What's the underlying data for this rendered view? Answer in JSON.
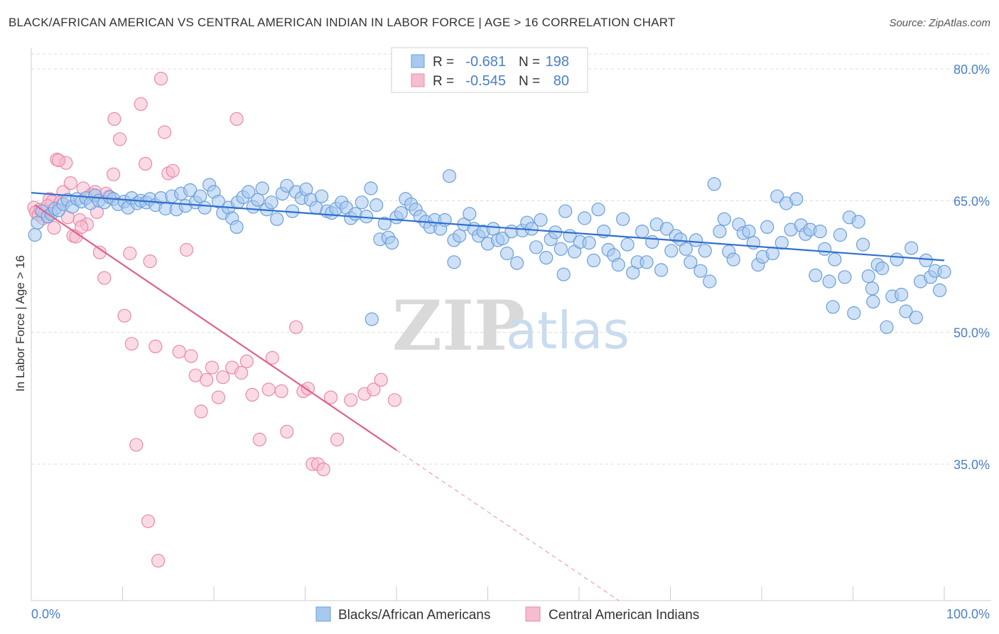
{
  "title": "BLACK/AFRICAN AMERICAN VS CENTRAL AMERICAN INDIAN IN LABOR FORCE | AGE > 16 CORRELATION CHART",
  "source": "Source: ZipAtlas.com",
  "watermark": {
    "zip": "ZIP",
    "atlas": "atlas"
  },
  "legend_top": [
    {
      "r_label": "R =",
      "r_value": "-0.681",
      "n_label": "N =",
      "n_value": "198"
    },
    {
      "r_label": "R =",
      "r_value": "-0.545",
      "n_label": "N =",
      "n_value": "80"
    }
  ],
  "colors": {
    "blue_fill": "#a8c8f0",
    "blue_stroke": "#6a9fd8",
    "blue_line": "#2f6fd0",
    "pink_fill": "#f6bcd0",
    "pink_stroke": "#e98aaa",
    "pink_line": "#e0608e",
    "tick_text": "#4a7fc9",
    "grid": "#dcdcdc"
  },
  "chart_data": {
    "type": "scatter",
    "title": "BLACK/AFRICAN AMERICAN VS CENTRAL AMERICAN INDIAN IN LABOR FORCE | AGE > 16 CORRELATION CHART",
    "xlabel": "",
    "ylabel": "In Labor Force | Age > 16",
    "xlim": [
      0,
      100
    ],
    "ylim": [
      20,
      82
    ],
    "x_tick_labels": [
      "0.0%",
      "100.0%"
    ],
    "y_ticks": [
      35,
      50,
      65,
      80
    ],
    "y_tick_labels": [
      "35.0%",
      "50.0%",
      "65.0%",
      "80.0%"
    ],
    "grid": true,
    "legend_placement": "bottom-center",
    "series": [
      {
        "name": "Blacks/African Americans",
        "color": "#a8c8f0",
        "trend": {
          "x": [
            0,
            100
          ],
          "y": [
            65.9,
            58.2
          ]
        },
        "points": [
          [
            0.4,
            61.1
          ],
          [
            0.7,
            62.5
          ],
          [
            1.2,
            63.8
          ],
          [
            1.8,
            63.2
          ],
          [
            2.2,
            63.5
          ],
          [
            2.6,
            64.1
          ],
          [
            3.0,
            63.9
          ],
          [
            3.5,
            64.6
          ],
          [
            4.0,
            65.1
          ],
          [
            4.5,
            64.3
          ],
          [
            5.0,
            65.2
          ],
          [
            5.5,
            64.9
          ],
          [
            6.0,
            65.3
          ],
          [
            6.5,
            64.7
          ],
          [
            7.0,
            65.6
          ],
          [
            7.4,
            65.0
          ],
          [
            8.0,
            64.8
          ],
          [
            8.6,
            65.4
          ],
          [
            9.0,
            65.2
          ],
          [
            9.5,
            64.6
          ],
          [
            10.2,
            64.9
          ],
          [
            10.6,
            64.2
          ],
          [
            11.0,
            65.3
          ],
          [
            11.6,
            64.7
          ],
          [
            12.0,
            65.0
          ],
          [
            12.6,
            64.8
          ],
          [
            13.0,
            65.2
          ],
          [
            13.6,
            64.5
          ],
          [
            14.2,
            65.3
          ],
          [
            14.7,
            64.1
          ],
          [
            15.4,
            65.5
          ],
          [
            15.9,
            64.0
          ],
          [
            16.4,
            65.8
          ],
          [
            16.9,
            64.4
          ],
          [
            17.4,
            66.2
          ],
          [
            18.0,
            64.8
          ],
          [
            18.5,
            65.5
          ],
          [
            19.0,
            64.2
          ],
          [
            19.5,
            66.8
          ],
          [
            20.0,
            66.0
          ],
          [
            20.5,
            64.9
          ],
          [
            21.0,
            63.6
          ],
          [
            21.6,
            64.2
          ],
          [
            22.0,
            63.0
          ],
          [
            22.6,
            64.8
          ],
          [
            23.2,
            65.4
          ],
          [
            23.8,
            66.0
          ],
          [
            24.3,
            64.3
          ],
          [
            24.8,
            65.1
          ],
          [
            25.3,
            66.4
          ],
          [
            25.8,
            64.0
          ],
          [
            26.3,
            64.8
          ],
          [
            26.9,
            62.9
          ],
          [
            27.5,
            65.8
          ],
          [
            28.0,
            66.7
          ],
          [
            28.6,
            63.8
          ],
          [
            29.0,
            66.0
          ],
          [
            29.6,
            65.3
          ],
          [
            30.1,
            66.3
          ],
          [
            30.6,
            65.1
          ],
          [
            31.2,
            64.2
          ],
          [
            31.8,
            65.5
          ],
          [
            32.4,
            63.8
          ],
          [
            32.9,
            63.6
          ],
          [
            33.4,
            64.1
          ],
          [
            34.0,
            64.8
          ],
          [
            34.5,
            64.2
          ],
          [
            35.0,
            63.0
          ],
          [
            35.5,
            63.5
          ],
          [
            36.2,
            64.8
          ],
          [
            36.7,
            63.2
          ],
          [
            37.2,
            66.4
          ],
          [
            37.8,
            64.5
          ],
          [
            38.2,
            60.6
          ],
          [
            38.7,
            62.4
          ],
          [
            39.1,
            60.8
          ],
          [
            39.5,
            60.2
          ],
          [
            40.0,
            63.1
          ],
          [
            40.5,
            63.6
          ],
          [
            41.0,
            65.2
          ],
          [
            41.6,
            64.6
          ],
          [
            42.1,
            64.0
          ],
          [
            42.6,
            63.2
          ],
          [
            43.2,
            62.6
          ],
          [
            43.7,
            62.0
          ],
          [
            44.2,
            62.8
          ],
          [
            44.8,
            61.8
          ],
          [
            45.3,
            62.8
          ],
          [
            45.8,
            67.8
          ],
          [
            46.3,
            60.5
          ],
          [
            46.9,
            61.0
          ],
          [
            47.4,
            62.3
          ],
          [
            48.0,
            63.5
          ],
          [
            48.5,
            61.8
          ],
          [
            49.0,
            61.0
          ],
          [
            49.5,
            61.5
          ],
          [
            50.0,
            60.1
          ],
          [
            50.6,
            61.8
          ],
          [
            51.1,
            60.5
          ],
          [
            51.6,
            60.7
          ],
          [
            52.1,
            59.0
          ],
          [
            52.6,
            61.5
          ],
          [
            53.2,
            57.9
          ],
          [
            53.8,
            61.6
          ],
          [
            54.3,
            62.5
          ],
          [
            54.8,
            61.8
          ],
          [
            55.3,
            59.7
          ],
          [
            55.8,
            62.8
          ],
          [
            56.4,
            58.5
          ],
          [
            56.9,
            60.6
          ],
          [
            57.4,
            61.4
          ],
          [
            58.0,
            59.5
          ],
          [
            58.5,
            63.8
          ],
          [
            59.0,
            61.0
          ],
          [
            59.5,
            59.2
          ],
          [
            60.1,
            60.3
          ],
          [
            60.6,
            63.0
          ],
          [
            61.1,
            60.2
          ],
          [
            61.6,
            58.2
          ],
          [
            62.1,
            64.0
          ],
          [
            62.7,
            61.5
          ],
          [
            63.2,
            59.4
          ],
          [
            63.8,
            58.8
          ],
          [
            64.3,
            57.7
          ],
          [
            64.8,
            62.9
          ],
          [
            65.3,
            60.0
          ],
          [
            65.9,
            56.8
          ],
          [
            66.4,
            58.0
          ],
          [
            66.9,
            61.5
          ],
          [
            67.4,
            58.0
          ],
          [
            68.0,
            60.3
          ],
          [
            68.5,
            62.3
          ],
          [
            69.0,
            57.1
          ],
          [
            69.6,
            61.8
          ],
          [
            70.1,
            59.3
          ],
          [
            70.6,
            61.0
          ],
          [
            71.1,
            60.6
          ],
          [
            71.7,
            59.5
          ],
          [
            72.2,
            58.0
          ],
          [
            72.8,
            60.5
          ],
          [
            73.3,
            57.0
          ],
          [
            73.8,
            59.3
          ],
          [
            74.3,
            55.8
          ],
          [
            74.8,
            66.9
          ],
          [
            75.4,
            61.5
          ],
          [
            75.9,
            62.9
          ],
          [
            76.4,
            59.2
          ],
          [
            76.9,
            58.3
          ],
          [
            77.5,
            62.3
          ],
          [
            78.0,
            61.3
          ],
          [
            78.6,
            61.5
          ],
          [
            79.1,
            60.2
          ],
          [
            79.6,
            57.7
          ],
          [
            80.1,
            58.6
          ],
          [
            80.6,
            62.0
          ],
          [
            81.2,
            59.0
          ],
          [
            81.7,
            65.5
          ],
          [
            82.2,
            60.2
          ],
          [
            82.7,
            64.7
          ],
          [
            83.2,
            61.7
          ],
          [
            83.8,
            65.2
          ],
          [
            84.3,
            62.2
          ],
          [
            84.8,
            61.2
          ],
          [
            85.3,
            61.7
          ],
          [
            85.9,
            56.5
          ],
          [
            86.4,
            61.5
          ],
          [
            86.9,
            59.5
          ],
          [
            87.4,
            55.8
          ],
          [
            88.0,
            58.3
          ],
          [
            88.6,
            61.1
          ],
          [
            89.1,
            56.3
          ],
          [
            89.6,
            63.1
          ],
          [
            90.1,
            52.2
          ],
          [
            90.6,
            62.6
          ],
          [
            91.1,
            60.0
          ],
          [
            91.7,
            56.4
          ],
          [
            92.2,
            53.5
          ],
          [
            92.7,
            57.7
          ],
          [
            93.2,
            57.3
          ],
          [
            93.7,
            50.6
          ],
          [
            94.3,
            54.1
          ],
          [
            94.8,
            58.3
          ],
          [
            95.3,
            54.3
          ],
          [
            95.8,
            52.4
          ],
          [
            96.4,
            59.6
          ],
          [
            96.9,
            51.7
          ],
          [
            97.4,
            55.8
          ],
          [
            98.0,
            58.2
          ],
          [
            98.5,
            56.3
          ],
          [
            99.0,
            57.0
          ],
          [
            99.5,
            54.8
          ],
          [
            100.0,
            56.9
          ],
          [
            37.3,
            51.5
          ],
          [
            22.5,
            62.0
          ],
          [
            46.3,
            58.0
          ],
          [
            58.3,
            56.6
          ],
          [
            87.8,
            52.9
          ],
          [
            92.1,
            55.0
          ]
        ]
      },
      {
        "name": "Central American Indians",
        "color": "#f6bcd0",
        "trend": {
          "x": [
            0.4,
            40.0
          ],
          "y": [
            64.5,
            36.6
          ]
        },
        "trend_dashed": {
          "x": [
            40.0,
            100.0
          ],
          "y": [
            36.6,
            -5.6
          ]
        },
        "points": [
          [
            0.3,
            64.2
          ],
          [
            0.5,
            63.7
          ],
          [
            0.8,
            63.4
          ],
          [
            1.0,
            64.0
          ],
          [
            1.3,
            63.0
          ],
          [
            1.5,
            63.6
          ],
          [
            1.8,
            63.2
          ],
          [
            2.0,
            65.2
          ],
          [
            2.3,
            64.9
          ],
          [
            2.5,
            61.9
          ],
          [
            2.8,
            69.7
          ],
          [
            3.2,
            64.8
          ],
          [
            3.5,
            66.0
          ],
          [
            3.8,
            69.3
          ],
          [
            4.0,
            63.1
          ],
          [
            4.3,
            67.0
          ],
          [
            4.6,
            61.0
          ],
          [
            4.9,
            60.9
          ],
          [
            5.3,
            62.8
          ],
          [
            5.7,
            66.4
          ],
          [
            6.1,
            62.3
          ],
          [
            6.6,
            65.7
          ],
          [
            7.2,
            63.7
          ],
          [
            7.5,
            59.1
          ],
          [
            8.0,
            56.2
          ],
          [
            8.5,
            65.5
          ],
          [
            9.1,
            74.3
          ],
          [
            9.7,
            72.0
          ],
          [
            10.2,
            51.9
          ],
          [
            11.0,
            48.7
          ],
          [
            11.5,
            37.2
          ],
          [
            12.0,
            76.0
          ],
          [
            12.5,
            69.2
          ],
          [
            13.0,
            58.1
          ],
          [
            13.6,
            48.4
          ],
          [
            14.2,
            78.9
          ],
          [
            14.6,
            72.8
          ],
          [
            15.0,
            68.1
          ],
          [
            15.5,
            68.4
          ],
          [
            16.2,
            47.8
          ],
          [
            17.0,
            59.4
          ],
          [
            17.5,
            47.3
          ],
          [
            18.0,
            45.1
          ],
          [
            18.6,
            41.0
          ],
          [
            19.2,
            44.6
          ],
          [
            19.8,
            46.0
          ],
          [
            20.5,
            42.6
          ],
          [
            21.0,
            44.9
          ],
          [
            22.0,
            46.0
          ],
          [
            22.5,
            74.3
          ],
          [
            23.0,
            45.4
          ],
          [
            23.6,
            46.7
          ],
          [
            24.2,
            42.9
          ],
          [
            25.0,
            37.8
          ],
          [
            26.0,
            43.5
          ],
          [
            26.4,
            47.1
          ],
          [
            27.4,
            43.3
          ],
          [
            28.0,
            38.7
          ],
          [
            29.0,
            50.6
          ],
          [
            29.8,
            43.3
          ],
          [
            30.3,
            43.6
          ],
          [
            30.8,
            35.0
          ],
          [
            31.4,
            35.0
          ],
          [
            32.0,
            34.4
          ],
          [
            32.8,
            42.6
          ],
          [
            33.5,
            37.8
          ],
          [
            35.0,
            42.3
          ],
          [
            36.5,
            43.0
          ],
          [
            37.5,
            43.5
          ],
          [
            38.3,
            44.6
          ],
          [
            39.8,
            42.3
          ],
          [
            1.8,
            64.4
          ],
          [
            3.0,
            69.6
          ],
          [
            5.5,
            62.0
          ],
          [
            7.0,
            66.0
          ],
          [
            8.2,
            65.8
          ],
          [
            9.0,
            68.0
          ],
          [
            10.8,
            59.0
          ],
          [
            13.9,
            24.0
          ],
          [
            12.8,
            28.5
          ]
        ]
      }
    ]
  }
}
